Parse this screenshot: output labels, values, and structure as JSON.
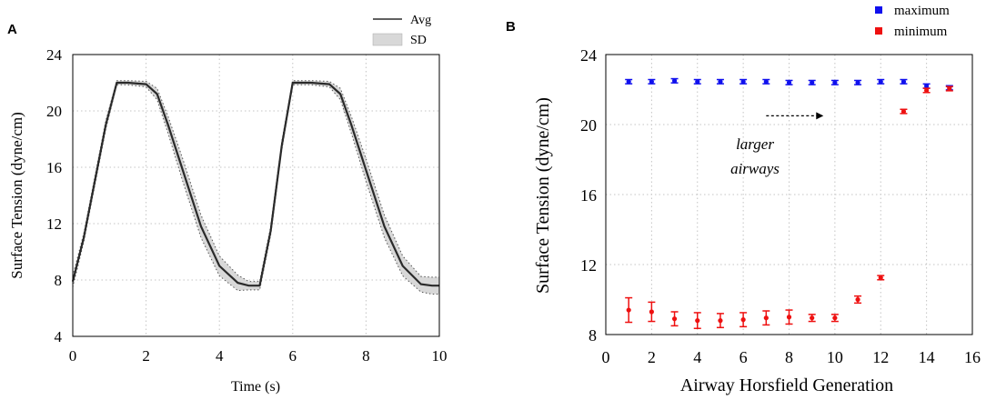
{
  "panels": {
    "a": {
      "letter": "A"
    },
    "b": {
      "letter": "B"
    }
  },
  "chart_data": [
    {
      "type": "line",
      "panel": "A",
      "title": "",
      "xlabel": "Time (s)",
      "ylabel": "Surface Tension (dyne/cm)",
      "xlim": [
        0,
        10
      ],
      "ylim": [
        4,
        24
      ],
      "xticks": [
        0,
        2,
        4,
        6,
        8,
        10
      ],
      "yticks": [
        4,
        8,
        12,
        16,
        20,
        24
      ],
      "grid": true,
      "legend": {
        "position": "top-right",
        "entries": [
          "Avg",
          "SD"
        ]
      },
      "series": [
        {
          "name": "Avg",
          "x": [
            0,
            0.3,
            0.6,
            0.9,
            1.2,
            1.5,
            2.0,
            2.3,
            2.6,
            3.0,
            3.5,
            4.0,
            4.5,
            4.8,
            5.1,
            5.4,
            5.7,
            6.0,
            6.2,
            6.5,
            7.0,
            7.3,
            7.6,
            8.0,
            8.5,
            9.0,
            9.5,
            9.8,
            10.0
          ],
          "y": [
            7.9,
            11.0,
            15.0,
            19.0,
            22.0,
            22.0,
            21.9,
            21.2,
            19.0,
            15.8,
            11.8,
            9.0,
            7.8,
            7.6,
            7.6,
            11.5,
            17.5,
            22.0,
            22.0,
            22.0,
            21.9,
            21.2,
            19.0,
            15.8,
            11.8,
            9.0,
            7.7,
            7.6,
            7.6
          ],
          "sd": [
            0.4,
            0.3,
            0.3,
            0.3,
            0.15,
            0.15,
            0.2,
            0.4,
            0.6,
            0.8,
            0.8,
            0.7,
            0.55,
            0.3,
            0.3,
            0.3,
            0.3,
            0.15,
            0.15,
            0.15,
            0.2,
            0.4,
            0.6,
            0.8,
            0.8,
            0.7,
            0.55,
            0.6,
            0.6
          ]
        }
      ]
    },
    {
      "type": "scatter",
      "panel": "B",
      "title": "",
      "xlabel": "Airway Horsfield Generation",
      "ylabel": "Surface Tension (dyne/cm)",
      "xlim": [
        0,
        16
      ],
      "ylim": [
        8,
        24
      ],
      "xticks": [
        0,
        2,
        4,
        6,
        8,
        10,
        12,
        14,
        16
      ],
      "yticks": [
        8,
        12,
        16,
        20,
        24
      ],
      "grid": true,
      "legend": {
        "position": "top-right",
        "entries": [
          "maximum",
          "minimum"
        ]
      },
      "annotation": {
        "text_line1": "larger",
        "text_line2": "airways",
        "arrow_from_x": 7,
        "arrow_to_x": 9.5,
        "arrow_y": 20.5
      },
      "series": [
        {
          "name": "maximum",
          "color": "#1010ee",
          "x": [
            1,
            2,
            3,
            4,
            5,
            6,
            7,
            8,
            9,
            10,
            11,
            12,
            13,
            14,
            15
          ],
          "y": [
            22.45,
            22.45,
            22.5,
            22.45,
            22.45,
            22.45,
            22.45,
            22.4,
            22.4,
            22.4,
            22.4,
            22.45,
            22.45,
            22.2,
            22.1
          ],
          "err": [
            0.12,
            0.12,
            0.12,
            0.12,
            0.12,
            0.12,
            0.12,
            0.12,
            0.12,
            0.12,
            0.12,
            0.12,
            0.12,
            0.12,
            0.12
          ]
        },
        {
          "name": "minimum",
          "color": "#ee1010",
          "x": [
            1,
            2,
            3,
            4,
            5,
            6,
            7,
            8,
            9,
            10,
            11,
            12,
            13,
            14,
            15
          ],
          "y": [
            9.4,
            9.3,
            8.9,
            8.8,
            8.8,
            8.85,
            8.95,
            9.0,
            8.95,
            8.95,
            10.0,
            11.25,
            20.75,
            21.95,
            22.05
          ],
          "err": [
            0.7,
            0.55,
            0.4,
            0.45,
            0.4,
            0.4,
            0.4,
            0.4,
            0.2,
            0.2,
            0.2,
            0.12,
            0.12,
            0.12,
            0.12
          ]
        }
      ]
    }
  ]
}
